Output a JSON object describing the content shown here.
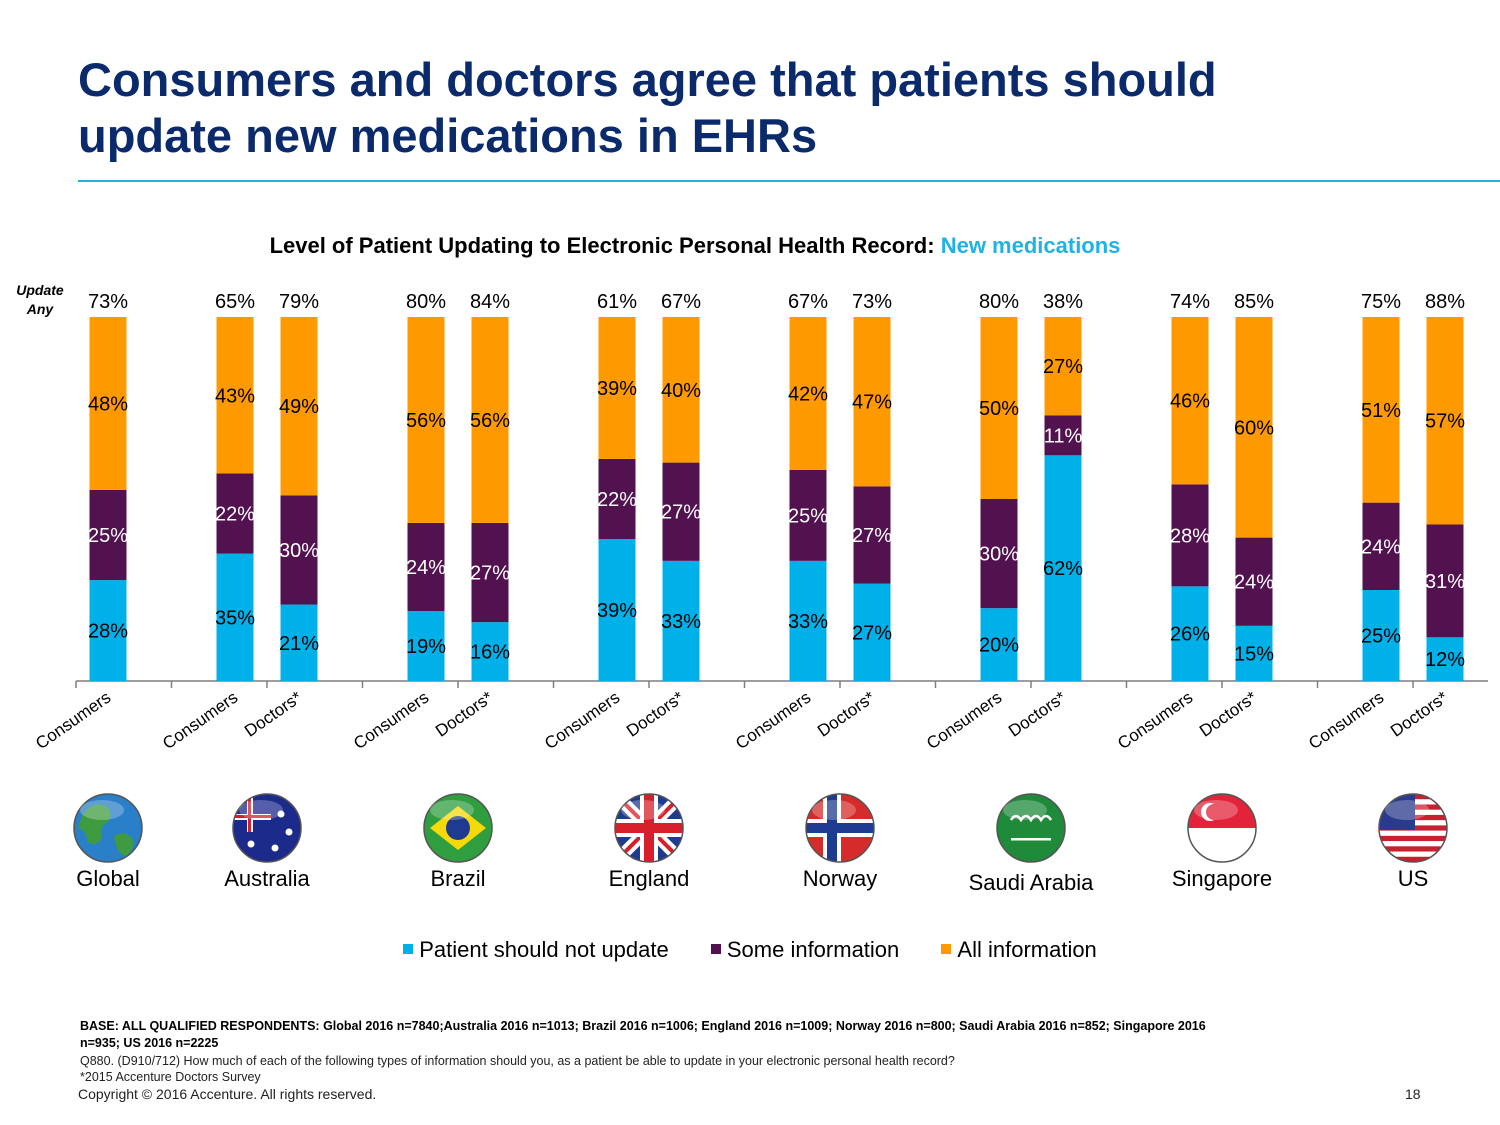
{
  "slide": {
    "title": "Consumers and doctors agree that patients should update new medications in EHRs",
    "update_any_label": "Update Any",
    "base_text": "BASE: ALL QUALIFIED RESPONDENTS: Global 2016 n=7840;Australia 2016 n=1013; Brazil  2016 n=1006; England  2016 n=1009; Norway  2016 n=800; Saudi Arabia 2016 n=852; Singapore  2016 n=935; US 2016 n=2225",
    "question_text": "Q880. (D910/712)  How much of each of the following types of information should you, as a patient be able to update in your electronic personal health record?",
    "footnote": "*2015 Accenture Doctors Survey",
    "copyright": "Copyright © 2016 Accenture. All rights reserved.",
    "page_number": "18"
  },
  "chart_data": {
    "type": "bar",
    "stacked": true,
    "title": "Level of Patient Updating to Electronic Personal Health Record:",
    "title_highlight": "New medications",
    "ylim": [
      0,
      100
    ],
    "grid": false,
    "legend_position": "bottom",
    "groups": [
      {
        "country": "Global",
        "flag_icon": "globe-icon",
        "bars": [
          {
            "label": "Consumers",
            "total": "73%",
            "values": [
              28,
              25,
              48
            ]
          }
        ]
      },
      {
        "country": "Australia",
        "flag_icon": "australia-flag-icon",
        "bars": [
          {
            "label": "Consumers",
            "total": "65%",
            "values": [
              35,
              22,
              43
            ]
          },
          {
            "label": "Doctors*",
            "total": "79%",
            "values": [
              21,
              30,
              49
            ]
          }
        ]
      },
      {
        "country": "Brazil",
        "flag_icon": "brazil-flag-icon",
        "bars": [
          {
            "label": "Consumers",
            "total": "80%",
            "values": [
              19,
              24,
              56
            ]
          },
          {
            "label": "Doctors*",
            "total": "84%",
            "values": [
              16,
              27,
              56
            ]
          }
        ]
      },
      {
        "country": "England",
        "flag_icon": "england-flag-icon",
        "bars": [
          {
            "label": "Consumers",
            "total": "61%",
            "values": [
              39,
              22,
              39
            ]
          },
          {
            "label": "Doctors*",
            "total": "67%",
            "values": [
              33,
              27,
              40
            ]
          }
        ]
      },
      {
        "country": "Norway",
        "flag_icon": "norway-flag-icon",
        "bars": [
          {
            "label": "Consumers",
            "total": "67%",
            "values": [
              33,
              25,
              42
            ]
          },
          {
            "label": "Doctors*",
            "total": "73%",
            "values": [
              27,
              27,
              47
            ]
          }
        ]
      },
      {
        "country": "Saudi Arabia",
        "flag_icon": "saudi-arabia-flag-icon",
        "bars": [
          {
            "label": "Consumers",
            "total": "80%",
            "values": [
              20,
              30,
              50
            ]
          },
          {
            "label": "Doctors*",
            "total": "38%",
            "values": [
              62,
              11,
              27
            ]
          }
        ]
      },
      {
        "country": "Singapore",
        "flag_icon": "singapore-flag-icon",
        "bars": [
          {
            "label": "Consumers",
            "total": "74%",
            "values": [
              26,
              28,
              46
            ]
          },
          {
            "label": "Doctors*",
            "total": "85%",
            "values": [
              15,
              24,
              60
            ]
          }
        ]
      },
      {
        "country": "US",
        "flag_icon": "us-flag-icon",
        "bars": [
          {
            "label": "Consumers",
            "total": "75%",
            "values": [
              25,
              24,
              51
            ]
          },
          {
            "label": "Doctors*",
            "total": "88%",
            "values": [
              12,
              31,
              57
            ]
          }
        ]
      }
    ],
    "series": [
      {
        "name": "Patient should not update",
        "color": "#00b0e8",
        "label_color": "#000000"
      },
      {
        "name": "Some information",
        "color": "#52124f",
        "label_color": "#ffffff"
      },
      {
        "name": "All information",
        "color": "#ff9900",
        "label_color": "#000000"
      }
    ]
  }
}
